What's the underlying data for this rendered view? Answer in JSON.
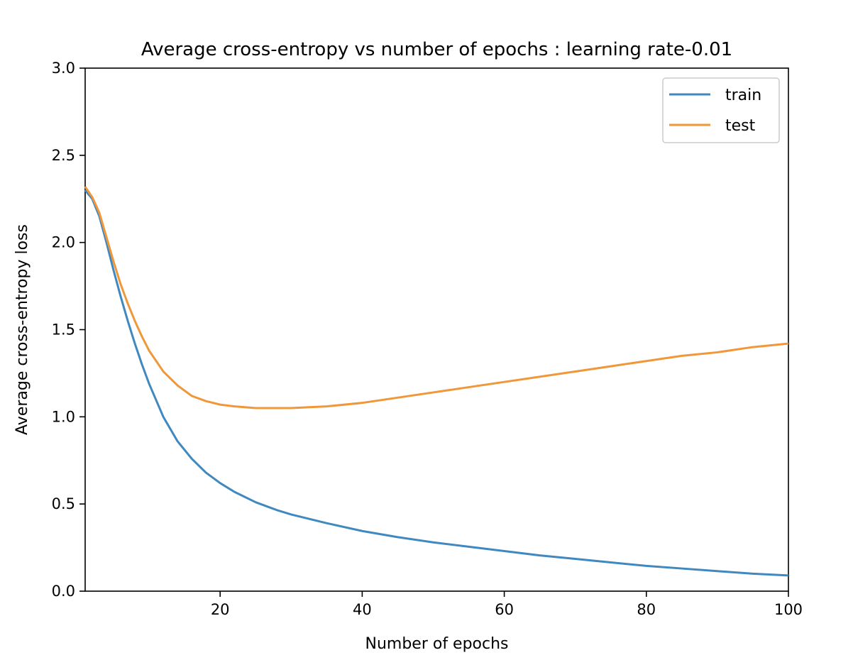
{
  "chart_data": {
    "type": "line",
    "title": "Average cross-entropy vs number of epochs : learning rate-0.01",
    "xlabel": "Number of epochs",
    "ylabel": "Average cross-entropy loss",
    "xlim": [
      1,
      100
    ],
    "ylim": [
      0,
      3.0
    ],
    "xticks": [
      20,
      40,
      60,
      80,
      100
    ],
    "yticks": [
      0.0,
      0.5,
      1.0,
      1.5,
      2.0,
      2.5,
      3.0
    ],
    "xtick_labels": [
      "20",
      "40",
      "60",
      "80",
      "100"
    ],
    "ytick_labels": [
      "0.0",
      "0.5",
      "1.0",
      "1.5",
      "2.0",
      "2.5",
      "3.0"
    ],
    "grid": false,
    "legend_position": "top-right",
    "series": [
      {
        "name": "train",
        "color": "#3f88c0",
        "x": [
          1,
          2,
          3,
          4,
          5,
          6,
          7,
          8,
          9,
          10,
          12,
          14,
          16,
          18,
          20,
          22,
          25,
          28,
          30,
          35,
          40,
          45,
          50,
          55,
          60,
          65,
          70,
          75,
          80,
          85,
          90,
          95,
          100
        ],
        "y": [
          2.3,
          2.25,
          2.15,
          2.0,
          1.84,
          1.69,
          1.55,
          1.42,
          1.3,
          1.19,
          1.0,
          0.86,
          0.76,
          0.68,
          0.62,
          0.57,
          0.51,
          0.465,
          0.44,
          0.39,
          0.345,
          0.31,
          0.28,
          0.255,
          0.23,
          0.205,
          0.185,
          0.165,
          0.145,
          0.13,
          0.115,
          0.1,
          0.09
        ]
      },
      {
        "name": "test",
        "color": "#f0973a",
        "x": [
          1,
          2,
          3,
          4,
          5,
          6,
          7,
          8,
          9,
          10,
          12,
          14,
          16,
          18,
          20,
          22,
          25,
          28,
          30,
          35,
          40,
          45,
          50,
          55,
          60,
          65,
          70,
          75,
          80,
          85,
          90,
          95,
          100
        ],
        "y": [
          2.32,
          2.26,
          2.17,
          2.03,
          1.89,
          1.76,
          1.65,
          1.55,
          1.46,
          1.38,
          1.26,
          1.18,
          1.12,
          1.09,
          1.07,
          1.06,
          1.05,
          1.05,
          1.05,
          1.06,
          1.08,
          1.11,
          1.14,
          1.17,
          1.2,
          1.23,
          1.26,
          1.29,
          1.32,
          1.35,
          1.37,
          1.4,
          1.42
        ]
      }
    ]
  }
}
